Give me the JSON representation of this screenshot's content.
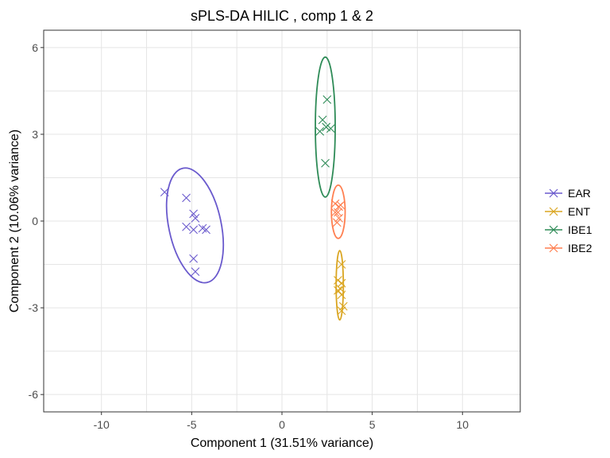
{
  "chart_data": {
    "type": "scatter",
    "title": "sPLS-DA HILIC , comp 1 & 2",
    "xlabel": "Component 1 (31.51% variance)",
    "ylabel": "Component 2 (10.06% variance)",
    "xlim": [
      -13.2,
      13.2
    ],
    "ylim": [
      -6.6,
      6.6
    ],
    "xticks": [
      -10,
      -5,
      0,
      5,
      10
    ],
    "yticks": [
      -6,
      -3,
      0,
      3,
      6
    ],
    "xtick_labels": [
      "-10",
      "-5",
      "0",
      "5",
      "10"
    ],
    "ytick_labels": [
      "-6",
      "-3",
      "0",
      "3",
      "6"
    ],
    "grid": true,
    "legend_position": "right",
    "marker": "x",
    "series": [
      {
        "name": "EAR",
        "color": "#6a5acd",
        "points": [
          [
            -6.5,
            1.0
          ],
          [
            -5.3,
            0.8
          ],
          [
            -4.9,
            0.25
          ],
          [
            -4.8,
            0.1
          ],
          [
            -5.3,
            -0.2
          ],
          [
            -4.4,
            -0.25
          ],
          [
            -4.2,
            -0.3
          ],
          [
            -4.9,
            -0.3
          ],
          [
            -4.9,
            -1.3
          ],
          [
            -4.8,
            -1.75
          ]
        ],
        "ellipse": {
          "cx": -4.82,
          "cy": -0.15,
          "rx": 1.45,
          "ry": 2.02,
          "rotation_deg": 12
        }
      },
      {
        "name": "ENT",
        "color": "#daa520",
        "points": [
          [
            3.3,
            -1.5
          ],
          [
            3.1,
            -2.05
          ],
          [
            3.3,
            -2.15
          ],
          [
            3.25,
            -2.35
          ],
          [
            3.1,
            -2.4
          ],
          [
            3.3,
            -2.55
          ],
          [
            3.4,
            -2.95
          ],
          [
            3.3,
            -3.1
          ]
        ],
        "ellipse": {
          "cx": 3.2,
          "cy": -2.22,
          "rx": 0.2,
          "ry": 1.2,
          "rotation_deg": 0
        }
      },
      {
        "name": "IBE1",
        "color": "#2e8b57",
        "points": [
          [
            2.5,
            4.2
          ],
          [
            2.25,
            3.5
          ],
          [
            2.45,
            3.25
          ],
          [
            2.7,
            3.2
          ],
          [
            2.1,
            3.1
          ],
          [
            2.4,
            2.0
          ]
        ],
        "ellipse": {
          "cx": 2.4,
          "cy": 3.25,
          "rx": 0.55,
          "ry": 2.42,
          "rotation_deg": 0
        }
      },
      {
        "name": "IBE2",
        "color": "#ff7f50",
        "points": [
          [
            2.95,
            0.6
          ],
          [
            3.15,
            0.5
          ],
          [
            3.25,
            0.55
          ],
          [
            2.95,
            0.3
          ],
          [
            3.15,
            0.1
          ],
          [
            3.05,
            -0.05
          ],
          [
            3.1,
            0.3
          ]
        ],
        "ellipse": {
          "cx": 3.12,
          "cy": 0.32,
          "rx": 0.38,
          "ry": 0.92,
          "rotation_deg": 0
        }
      }
    ]
  }
}
